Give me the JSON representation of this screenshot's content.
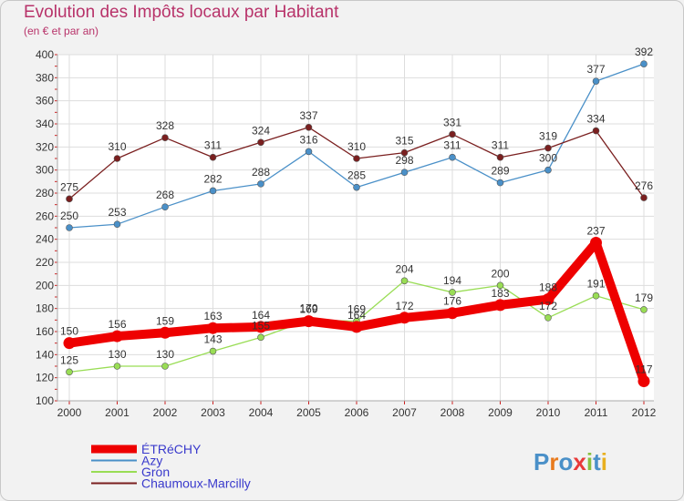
{
  "title": "Evolution des Impôts locaux par Habitant",
  "subtitle": "(en € et par an)",
  "logo_text": "Proxiti",
  "chart_data": {
    "type": "line",
    "title": "Evolution des Impôts locaux par Habitant",
    "ylabel": "(en € et par an)",
    "xlabel": "",
    "x": [
      "2000",
      "2001",
      "2002",
      "2003",
      "2004",
      "2005",
      "2006",
      "2007",
      "2008",
      "2009",
      "2010",
      "2011",
      "2012"
    ],
    "ylim": [
      100,
      400
    ],
    "yticks": [
      100,
      120,
      140,
      160,
      180,
      200,
      220,
      240,
      260,
      280,
      300,
      320,
      340,
      360,
      380,
      400
    ],
    "grid": true,
    "legend_position": "bottom-left",
    "series": [
      {
        "name": "ÉTRéCHY",
        "color": "#ee0000",
        "values": [
          150,
          156,
          159,
          163,
          164,
          169,
          164,
          172,
          176,
          183,
          188,
          237,
          117
        ]
      },
      {
        "name": "Azy",
        "color": "#4a90c8",
        "values": [
          250,
          253,
          268,
          282,
          288,
          316,
          285,
          298,
          311,
          289,
          300,
          377,
          392
        ]
      },
      {
        "name": "Gron",
        "color": "#99dd55",
        "values": [
          125,
          130,
          130,
          143,
          155,
          170,
          169,
          204,
          194,
          200,
          172,
          191,
          179
        ]
      },
      {
        "name": "Chaumoux-Marcilly",
        "color": "#7a1f1f",
        "values": [
          275,
          310,
          328,
          311,
          324,
          337,
          310,
          315,
          331,
          311,
          319,
          334,
          276
        ]
      }
    ]
  }
}
